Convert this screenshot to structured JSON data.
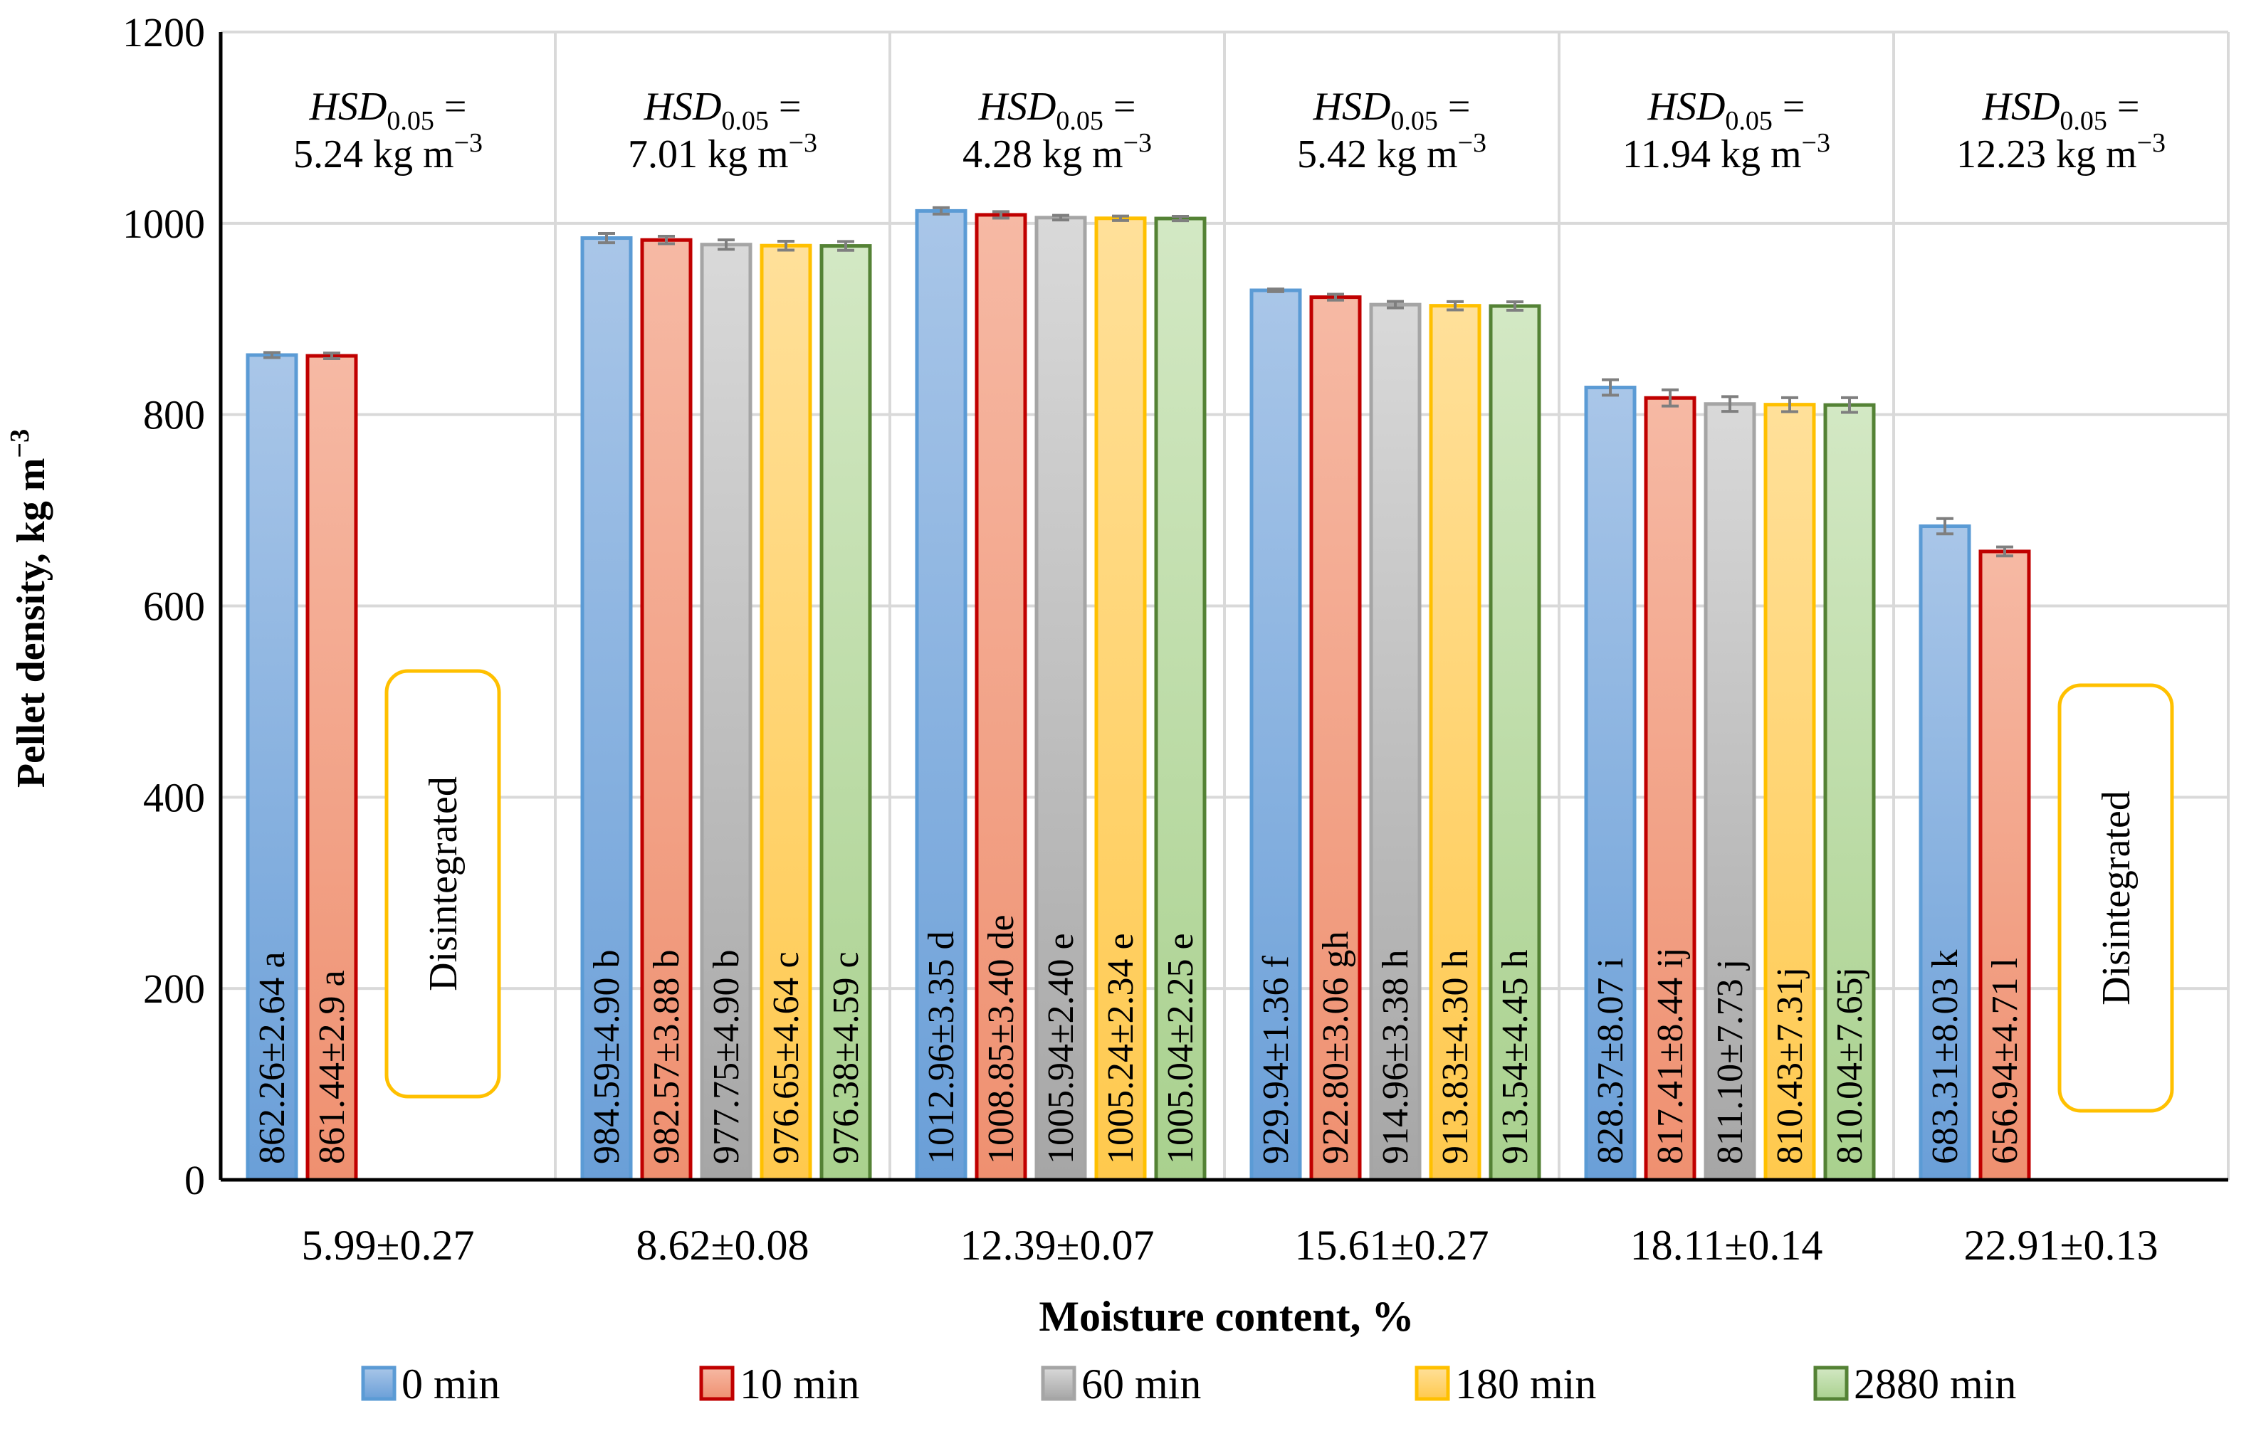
{
  "chart_data": {
    "type": "bar",
    "title": "",
    "xlabel": "Moisture content, %",
    "ylabel": "Pellet density, kg m",
    "ylabel_sup": "−3",
    "ylim": [
      0,
      1200
    ],
    "yticks": [
      0,
      200,
      400,
      600,
      800,
      1000,
      1200
    ],
    "grid": true,
    "legend_position": "bottom",
    "categories": [
      "5.99±0.27",
      "8.62±0.08",
      "12.39±0.07",
      "15.61±0.27",
      "18.11±0.14",
      "22.91±0.13"
    ],
    "hsd": [
      {
        "prefix": "HSD",
        "sub": "0.05",
        "eq": " =",
        "value": "5.24 kg m",
        "sup": "−3"
      },
      {
        "prefix": "HSD",
        "sub": "0.05",
        "eq": " =",
        "value": "7.01 kg m",
        "sup": "−3"
      },
      {
        "prefix": "HSD",
        "sub": "0.05",
        "eq": " =",
        "value": "4.28 kg m",
        "sup": "−3"
      },
      {
        "prefix": "HSD",
        "sub": "0.05",
        "eq": " =",
        "value": "5.42 kg m",
        "sup": "−3"
      },
      {
        "prefix": "HSD",
        "sub": "0.05",
        "eq": " =",
        "value": "11.94 kg m",
        "sup": "−3"
      },
      {
        "prefix": "HSD",
        "sub": "0.05",
        "eq": " =",
        "value": "12.23 kg m",
        "sup": "−3"
      }
    ],
    "disintegrated_label": "Disintegrated",
    "series": [
      {
        "name": "0 min",
        "fill_top": "#a9c6e8",
        "fill_bottom": "#6a9fd8",
        "stroke": "#5b9bd5",
        "values": [
          862.26,
          984.59,
          1012.96,
          929.94,
          828.37,
          683.31
        ],
        "errors": [
          2.64,
          4.9,
          3.35,
          1.36,
          8.07,
          8.03
        ],
        "labels": [
          "862.26±2.64 a",
          "984.59±4.90 b",
          "1012.96±3.35 d",
          "929.94±1.36 f",
          "828.37±8.07 i",
          "683.31±8.03 k"
        ]
      },
      {
        "name": "10 min",
        "fill_top": "#f6b9a4",
        "fill_bottom": "#ef9070",
        "stroke": "#c00000",
        "values": [
          861.44,
          982.57,
          1008.85,
          922.8,
          817.41,
          656.94
        ],
        "errors": [
          2.9,
          3.88,
          3.4,
          3.06,
          8.44,
          4.71
        ],
        "labels": [
          "861.44±2.9 a",
          "982.57±3.88 b",
          "1008.85±3.40 de",
          "922.80±3.06 gh",
          "817.41±8.44 ij",
          "656.94±4.71 l"
        ]
      },
      {
        "name": "60 min",
        "fill_top": "#d9d9d9",
        "fill_bottom": "#a6a6a6",
        "stroke": "#a5a5a5",
        "values": [
          null,
          977.75,
          1005.94,
          914.96,
          811.1,
          null
        ],
        "errors": [
          null,
          4.9,
          2.4,
          3.38,
          7.73,
          null
        ],
        "labels": [
          null,
          "977.75±4.90 b",
          "1005.94±2.40 e",
          "914.96±3.38 h",
          "811.10±7.73 j",
          null
        ]
      },
      {
        "name": "180 min",
        "fill_top": "#ffe09a",
        "fill_bottom": "#ffc94d",
        "stroke": "#ffc000",
        "values": [
          null,
          976.65,
          1005.24,
          913.83,
          810.43,
          null
        ],
        "errors": [
          null,
          4.64,
          2.34,
          4.3,
          7.31,
          null
        ],
        "labels": [
          null,
          "976.65±4.64 c",
          "1005.24±2.34 e",
          "913.83±4.30 h",
          "810.43±7.31j",
          null
        ]
      },
      {
        "name": "2880 min",
        "fill_top": "#d3e8c4",
        "fill_bottom": "#a9d18e",
        "stroke": "#548235",
        "values": [
          null,
          976.38,
          1005.04,
          913.54,
          810.04,
          null
        ],
        "errors": [
          null,
          4.59,
          2.25,
          4.45,
          7.65,
          null
        ],
        "labels": [
          null,
          "976.38±4.59 c",
          "1005.04±2.25 e",
          "913.54±4.45 h",
          "810.04±7.65j",
          null
        ]
      }
    ]
  }
}
